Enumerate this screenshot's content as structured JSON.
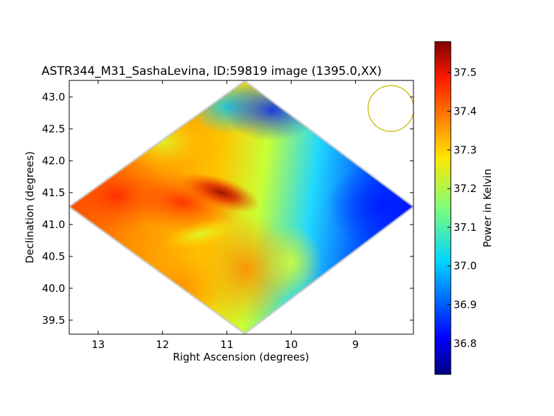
{
  "chart_data": {
    "type": "heatmap",
    "title": "ASTR344_M31_SashaLevina, ID:59819 image (1395.0,XX)",
    "xlabel": "Right Ascension (degrees)",
    "ylabel": "Declination (degrees)",
    "xlim": [
      13.45,
      8.1
    ],
    "ylim": [
      39.28,
      43.26
    ],
    "x_ticks": [
      13,
      12,
      11,
      10,
      9
    ],
    "x_tick_labels": [
      "13",
      "12",
      "11",
      "10",
      "9"
    ],
    "y_ticks": [
      39.5,
      40.0,
      40.5,
      41.0,
      41.5,
      42.0,
      42.5,
      43.0
    ],
    "y_tick_labels": [
      "39.5",
      "40.0",
      "40.5",
      "41.0",
      "41.5",
      "42.0",
      "42.5",
      "43.0"
    ],
    "colorbar": {
      "label": "Power in Kelvin",
      "range": [
        36.72,
        37.58
      ],
      "ticks": [
        36.8,
        36.9,
        37.0,
        37.1,
        37.2,
        37.3,
        37.4,
        37.5
      ],
      "tick_labels": [
        "36.8",
        "36.9",
        "37.0",
        "37.1",
        "37.2",
        "37.3",
        "37.4",
        "37.5"
      ],
      "colormap": "jet"
    },
    "map_region": {
      "shape": "diamond",
      "corners_ra_dec": [
        [
          13.45,
          41.28
        ],
        [
          10.72,
          43.25
        ],
        [
          8.1,
          41.28
        ],
        [
          10.72,
          39.29
        ]
      ]
    },
    "field_samples": [
      {
        "ra": 12.9,
        "dec": 41.4,
        "value": 37.5
      },
      {
        "ra": 11.0,
        "dec": 41.5,
        "value": 37.57
      },
      {
        "ra": 12.0,
        "dec": 41.0,
        "value": 37.42
      },
      {
        "ra": 10.7,
        "dec": 40.2,
        "value": 37.38
      },
      {
        "ra": 11.9,
        "dec": 42.1,
        "value": 37.3
      },
      {
        "ra": 11.3,
        "dec": 42.6,
        "value": 37.05
      },
      {
        "ra": 10.7,
        "dec": 42.9,
        "value": 36.92
      },
      {
        "ra": 10.1,
        "dec": 42.5,
        "value": 36.85
      },
      {
        "ra": 9.6,
        "dec": 41.0,
        "value": 37.05
      },
      {
        "ra": 8.6,
        "dec": 41.2,
        "value": 36.8
      },
      {
        "ra": 10.2,
        "dec": 40.6,
        "value": 37.2
      },
      {
        "ra": 9.9,
        "dec": 40.0,
        "value": 37.12
      }
    ],
    "beam": {
      "shape": "circle",
      "color": "#c8b400",
      "ra": 8.45,
      "dec": 42.82
    },
    "grid": false,
    "legend": "none"
  },
  "colors": {
    "axes": "#000000",
    "background": "#ffffff",
    "beam": "#c8b400"
  }
}
